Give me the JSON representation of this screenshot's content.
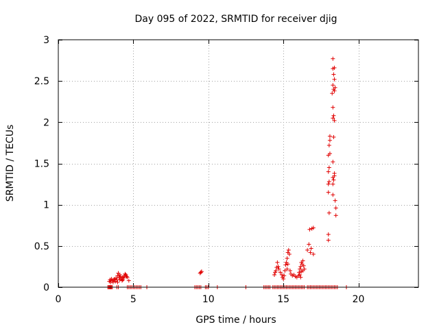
{
  "chart_data": {
    "type": "scatter",
    "title": "Day 095 of 2022, SRMTID for receiver djig",
    "xlabel": "GPS time / hours",
    "ylabel": "SRMTID / TECUs",
    "xlim": [
      0,
      24
    ],
    "ylim": [
      0,
      3
    ],
    "xticks": [
      0,
      5,
      10,
      15,
      20
    ],
    "yticks": [
      0,
      0.5,
      1,
      1.5,
      2,
      2.5,
      3
    ],
    "ytick_labels": [
      "0",
      "0.5",
      "1",
      "1.5",
      "2",
      "2.5",
      "3"
    ],
    "grid": true,
    "marker": "+",
    "color": "#e00000",
    "series": [
      {
        "name": "SRMTID",
        "points": [
          [
            3.3,
            0.0
          ],
          [
            3.35,
            0.0
          ],
          [
            3.4,
            0.0
          ],
          [
            3.45,
            0.0
          ],
          [
            3.5,
            0.0
          ],
          [
            3.55,
            0.0
          ],
          [
            3.6,
            0.0
          ],
          [
            3.9,
            0.0
          ],
          [
            4.0,
            0.0
          ],
          [
            4.6,
            0.0
          ],
          [
            4.7,
            0.0
          ],
          [
            4.8,
            0.0
          ],
          [
            4.9,
            0.0
          ],
          [
            5.0,
            0.0
          ],
          [
            5.1,
            0.0
          ],
          [
            5.2,
            0.0
          ],
          [
            5.3,
            0.0
          ],
          [
            5.4,
            0.0
          ],
          [
            5.5,
            0.0
          ],
          [
            5.9,
            0.0
          ],
          [
            3.4,
            0.07
          ],
          [
            3.45,
            0.09
          ],
          [
            3.5,
            0.06
          ],
          [
            3.55,
            0.1
          ],
          [
            3.6,
            0.08
          ],
          [
            3.65,
            0.06
          ],
          [
            3.7,
            0.09
          ],
          [
            3.75,
            0.1
          ],
          [
            3.8,
            0.07
          ],
          [
            3.85,
            0.11
          ],
          [
            3.9,
            0.09
          ],
          [
            3.95,
            0.14
          ],
          [
            4.0,
            0.17
          ],
          [
            4.05,
            0.12
          ],
          [
            4.1,
            0.09
          ],
          [
            4.15,
            0.13
          ],
          [
            4.2,
            0.1
          ],
          [
            4.25,
            0.08
          ],
          [
            4.3,
            0.12
          ],
          [
            4.35,
            0.11
          ],
          [
            4.4,
            0.14
          ],
          [
            4.45,
            0.16
          ],
          [
            4.5,
            0.15
          ],
          [
            4.55,
            0.13
          ],
          [
            4.6,
            0.12
          ],
          [
            4.7,
            0.08
          ],
          [
            3.95,
            0.06
          ],
          [
            4.1,
            0.15
          ],
          [
            4.3,
            0.09
          ],
          [
            9.1,
            0.0
          ],
          [
            9.2,
            0.0
          ],
          [
            9.3,
            0.0
          ],
          [
            9.4,
            0.0
          ],
          [
            9.5,
            0.0
          ],
          [
            9.8,
            0.0
          ],
          [
            9.9,
            0.0
          ],
          [
            10.0,
            0.0
          ],
          [
            10.6,
            0.0
          ],
          [
            9.5,
            0.18
          ],
          [
            9.55,
            0.19
          ],
          [
            9.45,
            0.17
          ],
          [
            12.5,
            0.0
          ],
          [
            13.7,
            0.0
          ],
          [
            13.8,
            0.0
          ],
          [
            13.9,
            0.0
          ],
          [
            14.0,
            0.0
          ],
          [
            14.1,
            0.0
          ],
          [
            14.3,
            0.0
          ],
          [
            14.4,
            0.0
          ],
          [
            14.5,
            0.0
          ],
          [
            14.6,
            0.0
          ],
          [
            14.7,
            0.0
          ],
          [
            14.8,
            0.0
          ],
          [
            14.9,
            0.0
          ],
          [
            15.0,
            0.0
          ],
          [
            15.1,
            0.0
          ],
          [
            15.2,
            0.0
          ],
          [
            15.3,
            0.0
          ],
          [
            15.4,
            0.0
          ],
          [
            15.5,
            0.0
          ],
          [
            15.6,
            0.0
          ],
          [
            15.7,
            0.0
          ],
          [
            15.8,
            0.0
          ],
          [
            15.9,
            0.0
          ],
          [
            16.0,
            0.0
          ],
          [
            16.1,
            0.0
          ],
          [
            16.2,
            0.0
          ],
          [
            16.3,
            0.0
          ],
          [
            16.4,
            0.0
          ],
          [
            16.6,
            0.0
          ],
          [
            16.7,
            0.0
          ],
          [
            16.8,
            0.0
          ],
          [
            16.9,
            0.0
          ],
          [
            17.0,
            0.0
          ],
          [
            17.1,
            0.0
          ],
          [
            17.2,
            0.0
          ],
          [
            17.3,
            0.0
          ],
          [
            17.4,
            0.0
          ],
          [
            17.5,
            0.0
          ],
          [
            17.6,
            0.0
          ],
          [
            17.7,
            0.0
          ],
          [
            17.8,
            0.0
          ],
          [
            17.9,
            0.0
          ],
          [
            18.0,
            0.0
          ],
          [
            18.1,
            0.0
          ],
          [
            18.2,
            0.0
          ],
          [
            18.3,
            0.0
          ],
          [
            18.4,
            0.0
          ],
          [
            18.5,
            0.0
          ],
          [
            18.6,
            0.0
          ],
          [
            19.2,
            0.0
          ],
          [
            14.4,
            0.15
          ],
          [
            14.45,
            0.18
          ],
          [
            14.5,
            0.2
          ],
          [
            14.55,
            0.24
          ],
          [
            14.6,
            0.3
          ],
          [
            14.65,
            0.25
          ],
          [
            14.7,
            0.22
          ],
          [
            14.8,
            0.18
          ],
          [
            14.9,
            0.15
          ],
          [
            14.95,
            0.12
          ],
          [
            15.0,
            0.1
          ],
          [
            15.05,
            0.14
          ],
          [
            15.1,
            0.2
          ],
          [
            15.15,
            0.27
          ],
          [
            15.2,
            0.3
          ],
          [
            15.25,
            0.35
          ],
          [
            15.3,
            0.42
          ],
          [
            15.35,
            0.45
          ],
          [
            15.4,
            0.4
          ],
          [
            15.25,
            0.22
          ],
          [
            15.3,
            0.28
          ],
          [
            15.45,
            0.2
          ],
          [
            15.5,
            0.16
          ],
          [
            15.6,
            0.14
          ],
          [
            15.7,
            0.15
          ],
          [
            15.8,
            0.13
          ],
          [
            15.9,
            0.12
          ],
          [
            16.0,
            0.14
          ],
          [
            16.05,
            0.18
          ],
          [
            16.1,
            0.22
          ],
          [
            16.15,
            0.25
          ],
          [
            16.2,
            0.3
          ],
          [
            16.25,
            0.28
          ],
          [
            16.3,
            0.32
          ],
          [
            16.35,
            0.26
          ],
          [
            16.4,
            0.22
          ],
          [
            16.1,
            0.15
          ],
          [
            16.2,
            0.19
          ],
          [
            16.3,
            0.2
          ],
          [
            16.15,
            0.12
          ],
          [
            16.6,
            0.45
          ],
          [
            16.7,
            0.52
          ],
          [
            16.75,
            0.7
          ],
          [
            16.8,
            0.42
          ],
          [
            16.85,
            0.47
          ],
          [
            16.9,
            0.71
          ],
          [
            17.0,
            0.72
          ],
          [
            17.0,
            0.4
          ],
          [
            18.0,
            0.57
          ],
          [
            18.0,
            0.64
          ],
          [
            18.05,
            0.9
          ],
          [
            18.0,
            1.15
          ],
          [
            18.0,
            1.25
          ],
          [
            18.05,
            1.28
          ],
          [
            18.0,
            1.4
          ],
          [
            18.05,
            1.45
          ],
          [
            18.0,
            1.6
          ],
          [
            18.1,
            1.62
          ],
          [
            18.05,
            1.72
          ],
          [
            18.1,
            1.78
          ],
          [
            18.1,
            1.83
          ],
          [
            18.3,
            1.12
          ],
          [
            18.3,
            1.25
          ],
          [
            18.35,
            1.3
          ],
          [
            18.3,
            1.33
          ],
          [
            18.4,
            1.35
          ],
          [
            18.4,
            1.38
          ],
          [
            18.3,
            1.52
          ],
          [
            18.35,
            1.82
          ],
          [
            18.3,
            2.05
          ],
          [
            18.35,
            2.08
          ],
          [
            18.4,
            2.02
          ],
          [
            18.3,
            2.18
          ],
          [
            18.25,
            2.35
          ],
          [
            18.3,
            2.45
          ],
          [
            18.35,
            2.4
          ],
          [
            18.4,
            2.38
          ],
          [
            18.45,
            2.42
          ],
          [
            18.4,
            2.52
          ],
          [
            18.35,
            2.58
          ],
          [
            18.3,
            2.65
          ],
          [
            18.4,
            2.66
          ],
          [
            18.3,
            2.77
          ],
          [
            18.45,
            1.05
          ],
          [
            18.5,
            0.87
          ],
          [
            18.5,
            0.96
          ]
        ]
      }
    ]
  }
}
